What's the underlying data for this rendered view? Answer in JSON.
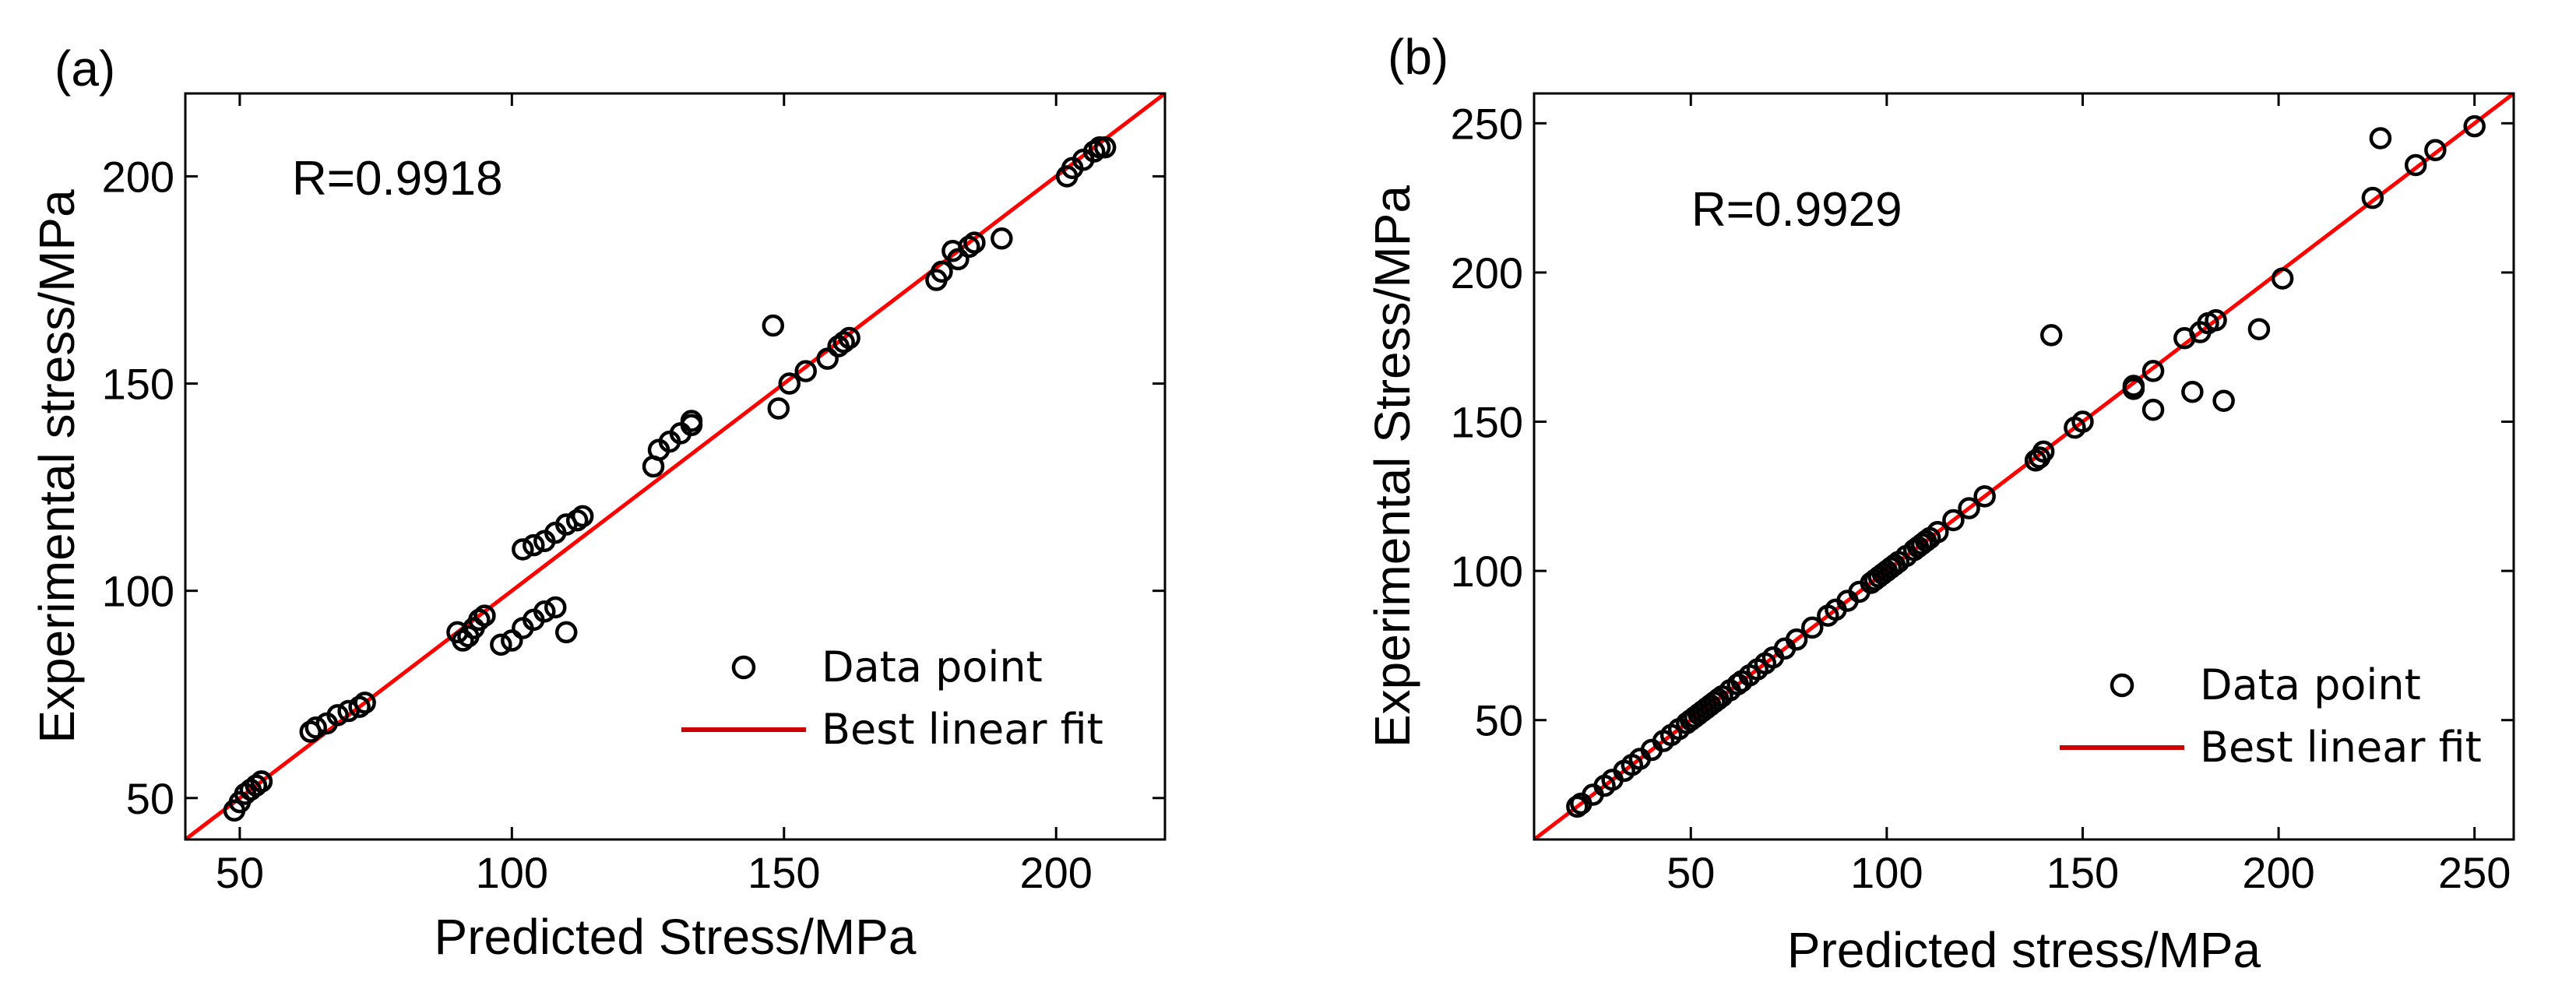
{
  "chart_data": [
    {
      "type": "scatter",
      "panel_label": "(a)",
      "annotation": "R=0.9918",
      "xlabel": "Predicted Stress/MPa",
      "ylabel": "Experimental stress/MPa",
      "xlim": [
        40,
        220
      ],
      "ylim": [
        40,
        220
      ],
      "xticks": [
        50,
        100,
        150,
        200
      ],
      "yticks": [
        50,
        100,
        150,
        200
      ],
      "grid": false,
      "legend_position": "bottom-right",
      "series": [
        {
          "name": "Data point",
          "marker": "open-circle",
          "color": "#000000",
          "x": [
            49,
            50,
            51,
            52,
            53,
            53,
            54,
            54,
            63,
            64,
            66,
            68,
            70,
            72,
            73,
            90,
            91,
            92,
            93,
            94,
            95,
            98,
            100,
            102,
            104,
            106,
            108,
            110,
            102,
            104,
            106,
            108,
            110,
            112,
            113,
            126,
            127,
            129,
            131,
            133,
            133,
            148,
            149,
            151,
            154,
            158,
            160,
            161,
            162,
            178,
            179,
            181,
            182,
            184,
            185,
            190,
            202,
            203,
            205,
            207,
            208,
            209
          ],
          "y": [
            47,
            49,
            51,
            52,
            53,
            53,
            54,
            54,
            66,
            67,
            68,
            70,
            71,
            72,
            73,
            90,
            88,
            89,
            91,
            93,
            94,
            87,
            88,
            91,
            93,
            95,
            96,
            90,
            110,
            111,
            112,
            114,
            116,
            117,
            118,
            130,
            134,
            136,
            138,
            140,
            141,
            164,
            144,
            150,
            153,
            156,
            159,
            160,
            161,
            175,
            177,
            182,
            180,
            183,
            184,
            185,
            200,
            202,
            204,
            206,
            207,
            207
          ]
        },
        {
          "name": "Best linear fit",
          "kind": "line",
          "color": "#ff0000",
          "x": [
            40,
            220
          ],
          "y": [
            40,
            220
          ]
        }
      ]
    },
    {
      "type": "scatter",
      "panel_label": "(b)",
      "annotation": "R=0.9929",
      "xlabel": "Predicted stress/MPa",
      "ylabel": "Experimental Stress/MPa",
      "xlim": [
        10,
        260
      ],
      "ylim": [
        10,
        260
      ],
      "xticks": [
        50,
        100,
        150,
        200,
        250
      ],
      "yticks": [
        50,
        100,
        150,
        200,
        250
      ],
      "grid": false,
      "legend_position": "bottom-right",
      "series": [
        {
          "name": "Data point",
          "marker": "open-circle",
          "color": "#000000",
          "x": [
            21,
            22,
            25,
            28,
            30,
            33,
            35,
            37,
            40,
            43,
            45,
            47,
            49,
            50,
            51,
            52,
            53,
            54,
            55,
            56,
            57,
            58,
            60,
            62,
            63,
            65,
            67,
            69,
            71,
            74,
            77,
            81,
            85,
            87,
            90,
            93,
            96,
            97,
            98,
            99,
            100,
            101,
            102,
            103,
            105,
            107,
            108,
            109,
            110,
            111,
            113,
            117,
            121,
            125,
            138,
            139,
            140,
            142,
            148,
            150,
            163,
            163,
            168,
            168,
            176,
            178,
            180,
            182,
            184,
            186,
            195,
            201,
            224,
            226,
            235,
            240,
            250
          ],
          "y": [
            21,
            22,
            25,
            28,
            30,
            33,
            35,
            37,
            40,
            43,
            45,
            47,
            49,
            50,
            51,
            52,
            53,
            54,
            55,
            56,
            57,
            58,
            60,
            62,
            63,
            65,
            67,
            69,
            71,
            74,
            77,
            81,
            85,
            87,
            90,
            93,
            96,
            97,
            98,
            99,
            100,
            101,
            102,
            103,
            105,
            107,
            108,
            109,
            110,
            111,
            113,
            117,
            121,
            125,
            137,
            138,
            140,
            179,
            148,
            150,
            161,
            162,
            154,
            167,
            178,
            160,
            180,
            183,
            184,
            157,
            181,
            198,
            225,
            245,
            236,
            241,
            249
          ]
        },
        {
          "name": "Best linear fit",
          "kind": "line",
          "color": "#ff0000",
          "x": [
            10,
            260
          ],
          "y": [
            10,
            260
          ]
        }
      ]
    }
  ]
}
